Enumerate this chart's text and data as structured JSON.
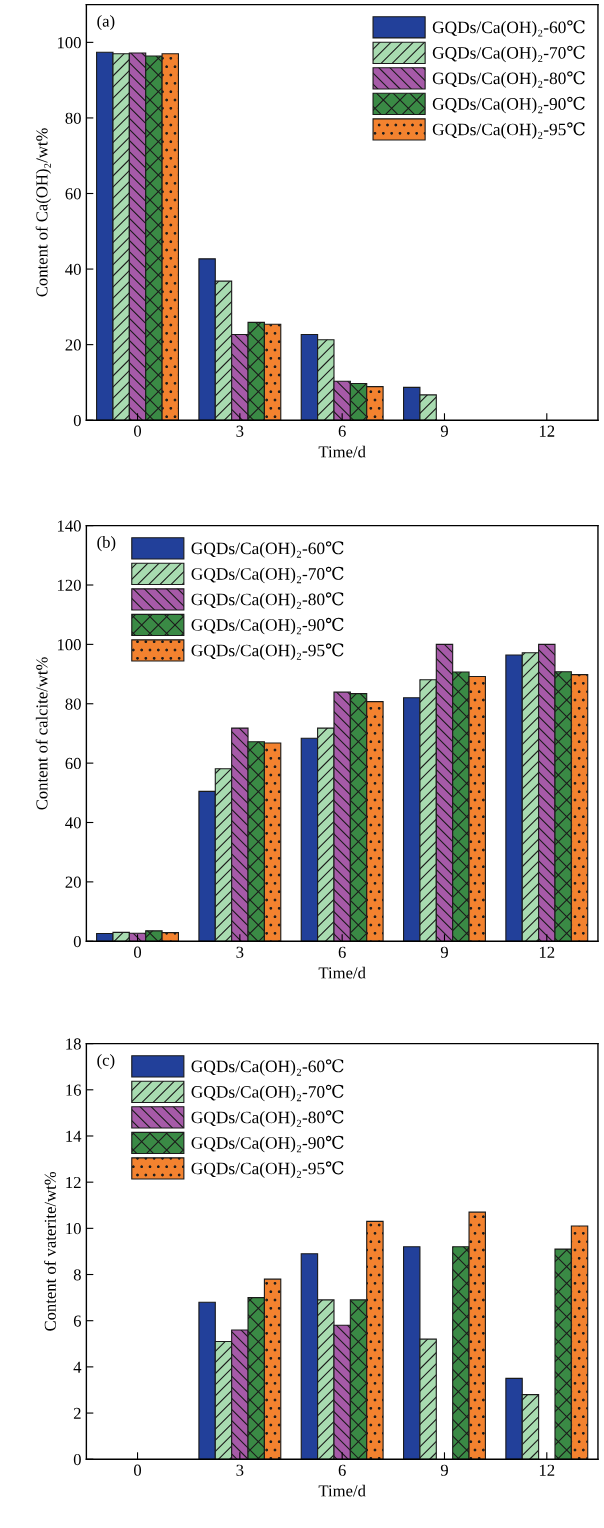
{
  "chart_data": [
    {
      "type": "bar",
      "annotations": [
        "(a)"
      ],
      "xlabel": "Time/d",
      "ylabel": "Content of Ca(OH)₂/wt%",
      "categories": [
        "0",
        "3",
        "6",
        "9",
        "12"
      ],
      "ylim": [
        0,
        110
      ],
      "yticks": [
        0,
        20,
        40,
        60,
        80,
        100
      ],
      "legend": "top right",
      "series": [
        {
          "name": "GQDs/Ca(OH)₂-60℃",
          "color": "#22409a",
          "values": [
            97.4,
            42.7,
            22.7,
            8.7,
            null
          ]
        },
        {
          "name": "GQDs/Ca(OH)₂-70℃",
          "color": "#a8dbb0",
          "values": [
            97.0,
            36.8,
            21.3,
            6.7,
            null
          ]
        },
        {
          "name": "GQDs/Ca(OH)₂-80℃",
          "color": "#a65aa8",
          "values": [
            97.2,
            22.7,
            10.3,
            null,
            null
          ]
        },
        {
          "name": "GQDs/Ca(OH)₂-90℃",
          "color": "#3a8a45",
          "values": [
            96.4,
            25.9,
            9.7,
            null,
            null
          ]
        },
        {
          "name": "GQDs/Ca(OH)₂-95℃",
          "color": "#f3822f",
          "values": [
            97.0,
            25.4,
            8.9,
            null,
            null
          ]
        }
      ]
    },
    {
      "type": "bar",
      "annotations": [
        "(b)"
      ],
      "xlabel": "Time/d",
      "ylabel": "Content of calcite/wt%",
      "categories": [
        "0",
        "3",
        "6",
        "9",
        "12"
      ],
      "ylim": [
        0,
        140
      ],
      "yticks": [
        0,
        20,
        40,
        60,
        80,
        100,
        120,
        140
      ],
      "legend": "top left",
      "series": [
        {
          "name": "GQDs/Ca(OH)₂-60℃",
          "color": "#22409a",
          "values": [
            2.6,
            50.5,
            68.4,
            82.0,
            96.4
          ]
        },
        {
          "name": "GQDs/Ca(OH)₂-70℃",
          "color": "#a8dbb0",
          "values": [
            3.0,
            58.1,
            71.8,
            88.1,
            97.2
          ]
        },
        {
          "name": "GQDs/Ca(OH)₂-80℃",
          "color": "#a65aa8",
          "values": [
            2.7,
            71.8,
            83.9,
            100.0,
            100.0
          ]
        },
        {
          "name": "GQDs/Ca(OH)₂-90℃",
          "color": "#3a8a45",
          "values": [
            3.5,
            67.2,
            83.4,
            90.7,
            90.8
          ]
        },
        {
          "name": "GQDs/Ca(OH)₂-95℃",
          "color": "#f3822f",
          "values": [
            2.9,
            66.8,
            80.7,
            89.2,
            89.8
          ]
        }
      ]
    },
    {
      "type": "bar",
      "annotations": [
        "(c)"
      ],
      "xlabel": "Time/d",
      "ylabel": "Content of vaterite/wt%",
      "categories": [
        "0",
        "3",
        "6",
        "9",
        "12"
      ],
      "ylim": [
        0,
        18
      ],
      "yticks": [
        0,
        2,
        4,
        6,
        8,
        10,
        12,
        14,
        16,
        18
      ],
      "legend": "top left",
      "series": [
        {
          "name": "GQDs/Ca(OH)₂-60℃",
          "color": "#22409a",
          "values": [
            null,
            6.8,
            8.9,
            9.2,
            3.5
          ]
        },
        {
          "name": "GQDs/Ca(OH)₂-70℃",
          "color": "#a8dbb0",
          "values": [
            null,
            5.1,
            6.9,
            5.2,
            2.8
          ]
        },
        {
          "name": "GQDs/Ca(OH)₂-80℃",
          "color": "#a65aa8",
          "values": [
            null,
            5.6,
            5.8,
            null,
            null
          ]
        },
        {
          "name": "GQDs/Ca(OH)₂-90℃",
          "color": "#3a8a45",
          "values": [
            null,
            7.0,
            6.9,
            9.2,
            9.1
          ]
        },
        {
          "name": "GQDs/Ca(OH)₂-95℃",
          "color": "#f3822f",
          "values": [
            null,
            7.8,
            10.3,
            10.7,
            10.1
          ]
        }
      ]
    }
  ]
}
